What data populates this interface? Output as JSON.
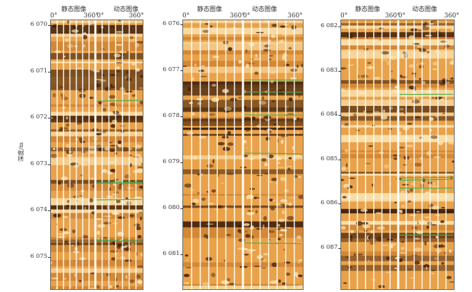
{
  "header": {
    "static_label": "静态图像",
    "dynamic_label": "动态图像",
    "deg_start": "0°",
    "deg_end": "360°"
  },
  "axis_label": "深度/m",
  "panels": [
    {
      "ticks": [
        "6 070",
        "6 071",
        "6 072",
        "6 073",
        "6 074",
        "6 075"
      ]
    },
    {
      "ticks": [
        "6 076",
        "6 077",
        "6 078",
        "6 079",
        "6 080",
        "6 081"
      ]
    },
    {
      "ticks": [
        "6 082",
        "6 083",
        "6 084",
        "6 085",
        "6 086",
        "6 087"
      ]
    }
  ],
  "colors": {
    "base": "#e9a24a",
    "dark": "#3a1c08",
    "light": "#fbe7b8",
    "gap": "#ffffff",
    "green": "#4caf50"
  }
}
